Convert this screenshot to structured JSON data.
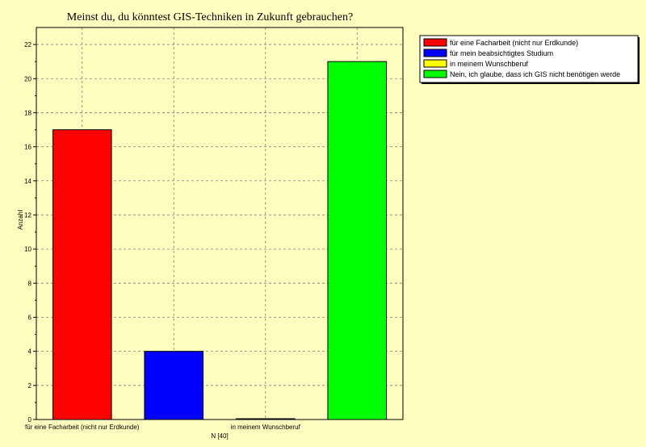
{
  "chart_data": {
    "type": "bar",
    "title": "Meinst du, du könntest GIS-Techniken in Zukunft gebrauchen?",
    "ylabel": "Anzahl",
    "xlabel": "N [40]",
    "ylim": [
      0,
      23
    ],
    "yticks": [
      0,
      2,
      4,
      6,
      8,
      10,
      12,
      14,
      16,
      18,
      20,
      22
    ],
    "categories": [
      "für eine Facharbeit (nicht nur Erdkunde)",
      "für mein beabsichtigtes Studium",
      "in meinem Wunschberuf",
      "Nein, ich glaube, dass ich GIS nicht benötigen werde"
    ],
    "x_tick_labels": [
      "für eine Facharbeit (nicht nur Erdkunde)",
      "",
      "in meinem Wunschberuf",
      ""
    ],
    "values": [
      17,
      4,
      0,
      21
    ],
    "colors": [
      "#ff0000",
      "#0000ff",
      "#ffff00",
      "#00ff00"
    ],
    "grid": true,
    "legend_position": "top-right",
    "legend": [
      {
        "label": "für eine Facharbeit (nicht nur Erdkunde)",
        "color": "#ff0000"
      },
      {
        "label": "für mein beabsichtigtes Studium",
        "color": "#0000ff"
      },
      {
        "label": "in meinem Wunschberuf",
        "color": "#ffff00"
      },
      {
        "label": "Nein, ich glaube, dass ich GIS nicht benötigen werde",
        "color": "#00ff00"
      }
    ]
  }
}
